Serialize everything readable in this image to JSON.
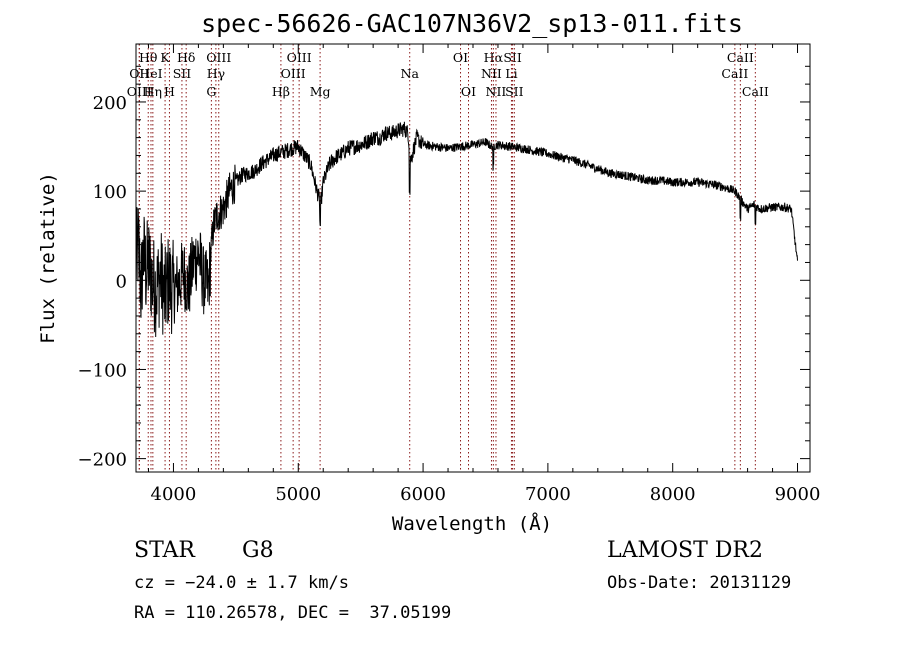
{
  "chart_data": {
    "type": "line",
    "title": "spec-56626-GAC107N36V2_sp13-011.fits",
    "xlabel": "Wavelength (Å)",
    "ylabel": "Flux (relative)",
    "xlim": [
      3700,
      9100
    ],
    "ylim": [
      -215,
      265
    ],
    "xticks": [
      {
        "value": 4000,
        "label": "4000"
      },
      {
        "value": 5000,
        "label": "5000"
      },
      {
        "value": 6000,
        "label": "6000"
      },
      {
        "value": 7000,
        "label": "7000"
      },
      {
        "value": 8000,
        "label": "8000"
      },
      {
        "value": 9000,
        "label": "9000"
      }
    ],
    "yticks": [
      {
        "value": -200,
        "label": "−200"
      },
      {
        "value": -100,
        "label": "−100"
      },
      {
        "value": 0,
        "label": "0"
      },
      {
        "value": 100,
        "label": "100"
      },
      {
        "value": 200,
        "label": "200"
      }
    ],
    "line_color": "#000000",
    "marker_color": "#8b1a1a",
    "spectrum_envelope": {
      "x": [
        3700,
        3720,
        3740,
        3760,
        3780,
        3800,
        3830,
        3860,
        3900,
        3930,
        3960,
        4000,
        4040,
        4080,
        4120,
        4160,
        4200,
        4240,
        4280,
        4300,
        4320,
        4340,
        4360,
        4400,
        4450,
        4500,
        4550,
        4600,
        4650,
        4700,
        4750,
        4800,
        4850,
        4900,
        4950,
        5000,
        5050,
        5100,
        5150,
        5180,
        5200,
        5250,
        5300,
        5350,
        5400,
        5450,
        5500,
        5550,
        5600,
        5650,
        5700,
        5750,
        5800,
        5850,
        5880,
        5900,
        5950,
        6000,
        6100,
        6200,
        6300,
        6400,
        6500,
        6550,
        6600,
        6700,
        6800,
        6900,
        7000,
        7100,
        7200,
        7300,
        7400,
        7500,
        7600,
        7700,
        7800,
        7900,
        8000,
        8100,
        8200,
        8300,
        8400,
        8500,
        8550,
        8600,
        8650,
        8700,
        8800,
        8900,
        8950,
        9000
      ],
      "y": [
        20,
        40,
        -10,
        30,
        10,
        20,
        0,
        -10,
        5,
        -20,
        0,
        -10,
        -5,
        10,
        -10,
        20,
        30,
        0,
        -10,
        30,
        60,
        70,
        75,
        80,
        100,
        110,
        118,
        120,
        123,
        130,
        135,
        140,
        143,
        145,
        148,
        150,
        140,
        130,
        100,
        85,
        110,
        130,
        138,
        142,
        148,
        150,
        152,
        155,
        160,
        160,
        165,
        165,
        168,
        170,
        165,
        135,
        160,
        152,
        150,
        148,
        150,
        152,
        155,
        150,
        152,
        150,
        148,
        145,
        142,
        138,
        135,
        130,
        125,
        120,
        118,
        115,
        112,
        112,
        110,
        110,
        110,
        108,
        105,
        100,
        90,
        80,
        85,
        80,
        82,
        82,
        80,
        20
      ]
    },
    "line_markers": [
      {
        "label": "Hθ",
        "wavelength": 3798,
        "row": 1
      },
      {
        "label": "OII",
        "wavelength": 3727,
        "row": 2
      },
      {
        "label": "OIII",
        "wavelength": 3726,
        "row": 3
      },
      {
        "label": "HeI",
        "wavelength": 3820,
        "row": 2
      },
      {
        "label": "Hη",
        "wavelength": 3835,
        "row": 3
      },
      {
        "label": "K",
        "wavelength": 3933,
        "row": 1
      },
      {
        "label": "SII",
        "wavelength": 4068,
        "row": 2
      },
      {
        "label": "H",
        "wavelength": 3968,
        "row": 3
      },
      {
        "label": "Hδ",
        "wavelength": 4102,
        "row": 1
      },
      {
        "label": "OIII",
        "wavelength": 4363,
        "row": 1
      },
      {
        "label": "Hγ",
        "wavelength": 4340,
        "row": 2
      },
      {
        "label": "G",
        "wavelength": 4304,
        "row": 3
      },
      {
        "label": "OIII",
        "wavelength": 5007,
        "row": 1
      },
      {
        "label": "OIII",
        "wavelength": 4959,
        "row": 2
      },
      {
        "label": "Hβ",
        "wavelength": 4861,
        "row": 3
      },
      {
        "label": "Mg",
        "wavelength": 5175,
        "row": 3
      },
      {
        "label": "Na",
        "wavelength": 5893,
        "row": 2
      },
      {
        "label": "OI",
        "wavelength": 6300,
        "row": 1
      },
      {
        "label": "OI",
        "wavelength": 6364,
        "row": 3
      },
      {
        "label": "Hα",
        "wavelength": 6563,
        "row": 1
      },
      {
        "label": "NII",
        "wavelength": 6548,
        "row": 2
      },
      {
        "label": "NII",
        "wavelength": 6584,
        "row": 3
      },
      {
        "label": "SII",
        "wavelength": 6717,
        "row": 1
      },
      {
        "label": "Li",
        "wavelength": 6708,
        "row": 2
      },
      {
        "label": "SII",
        "wavelength": 6731,
        "row": 3
      },
      {
        "label": "CaII",
        "wavelength": 8542,
        "row": 1
      },
      {
        "label": "CaII",
        "wavelength": 8498,
        "row": 2
      },
      {
        "label": "CaII",
        "wavelength": 8662,
        "row": 3
      }
    ]
  },
  "info": {
    "object_class": "STAR",
    "subclass": "G8",
    "redshift": "cz = −24.0 ± 1.7 km/s",
    "coords": "RA = 110.26578, DEC =  37.05199",
    "survey": "LAMOST DR2",
    "obs_date": "Obs-Date: 20131129"
  }
}
